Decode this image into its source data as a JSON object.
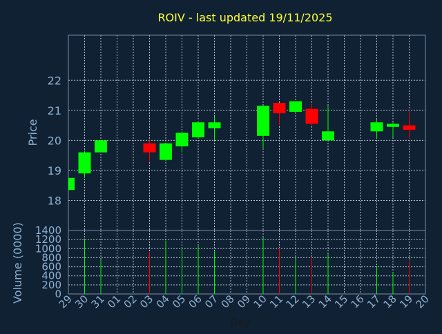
{
  "chart_data": {
    "type": "candlestick",
    "title": "ROIV - last updated 19/11/2025",
    "xlabel": "Day",
    "price_axis": {
      "label": "Price",
      "ticks": [
        18,
        19,
        20,
        21,
        22
      ],
      "ylim": [
        17,
        23.5
      ]
    },
    "volume_axis": {
      "label": "Volume (0000)",
      "ticks": [
        0,
        200,
        400,
        600,
        800,
        1000,
        1200,
        1400
      ],
      "ylim": [
        0,
        1400
      ]
    },
    "days": [
      "29",
      "30",
      "31",
      "01",
      "02",
      "03",
      "04",
      "05",
      "06",
      "07",
      "08",
      "09",
      "10",
      "11",
      "12",
      "13",
      "14",
      "15",
      "16",
      "17",
      "18",
      "19",
      "20"
    ],
    "grid": true,
    "colors": {
      "background": "#0f2133",
      "frame": "#7a8ea6",
      "grid": "#b8c4d0",
      "title": "#ffff33",
      "axis_text": "#8fb0d0",
      "up": "#00ff00",
      "down": "#ff0000"
    },
    "candles": [
      {
        "day": "29",
        "open": 18.35,
        "high": 18.75,
        "low": 18.3,
        "close": 18.75
      },
      {
        "day": "30",
        "open": 18.9,
        "high": 19.65,
        "low": 18.75,
        "close": 19.6
      },
      {
        "day": "31",
        "open": 19.6,
        "high": 20.0,
        "low": 19.6,
        "close": 20.0
      },
      {
        "day": "03",
        "open": 19.9,
        "high": 20.0,
        "low": 19.3,
        "close": 19.6
      },
      {
        "day": "04",
        "open": 19.35,
        "high": 19.9,
        "low": 19.3,
        "close": 19.9
      },
      {
        "day": "05",
        "open": 19.8,
        "high": 20.3,
        "low": 19.6,
        "close": 20.25
      },
      {
        "day": "06",
        "open": 20.1,
        "high": 20.65,
        "low": 20.05,
        "close": 20.6
      },
      {
        "day": "07",
        "open": 20.4,
        "high": 20.8,
        "low": 20.0,
        "close": 20.6
      },
      {
        "day": "10",
        "open": 20.15,
        "high": 21.15,
        "low": 19.75,
        "close": 21.15
      },
      {
        "day": "11",
        "open": 21.25,
        "high": 21.25,
        "low": 20.5,
        "close": 20.9
      },
      {
        "day": "12",
        "open": 20.95,
        "high": 21.3,
        "low": 20.9,
        "close": 21.3
      },
      {
        "day": "13",
        "open": 21.05,
        "high": 21.2,
        "low": 20.5,
        "close": 20.55
      },
      {
        "day": "14",
        "open": 20.0,
        "high": 21.15,
        "low": 20.0,
        "close": 20.3
      },
      {
        "day": "17",
        "open": 20.3,
        "high": 20.7,
        "low": 20.05,
        "close": 20.6
      },
      {
        "day": "18",
        "open": 20.45,
        "high": 20.6,
        "low": 20.1,
        "close": 20.55
      },
      {
        "day": "19",
        "open": 20.5,
        "high": 21.0,
        "low": 20.05,
        "close": 20.35
      }
    ],
    "volumes": [
      {
        "day": "30",
        "value": 1220,
        "dir": "up"
      },
      {
        "day": "31",
        "value": 760,
        "dir": "up"
      },
      {
        "day": "03",
        "value": 920,
        "dir": "down"
      },
      {
        "day": "04",
        "value": 1180,
        "dir": "up"
      },
      {
        "day": "05",
        "value": 1020,
        "dir": "up"
      },
      {
        "day": "06",
        "value": 1080,
        "dir": "up"
      },
      {
        "day": "07",
        "value": 940,
        "dir": "up"
      },
      {
        "day": "10",
        "value": 1250,
        "dir": "up"
      },
      {
        "day": "11",
        "value": 1020,
        "dir": "down"
      },
      {
        "day": "12",
        "value": 780,
        "dir": "up"
      },
      {
        "day": "13",
        "value": 800,
        "dir": "down"
      },
      {
        "day": "14",
        "value": 880,
        "dir": "up"
      },
      {
        "day": "17",
        "value": 620,
        "dir": "up"
      },
      {
        "day": "18",
        "value": 480,
        "dir": "up"
      },
      {
        "day": "19",
        "value": 740,
        "dir": "down"
      }
    ]
  }
}
